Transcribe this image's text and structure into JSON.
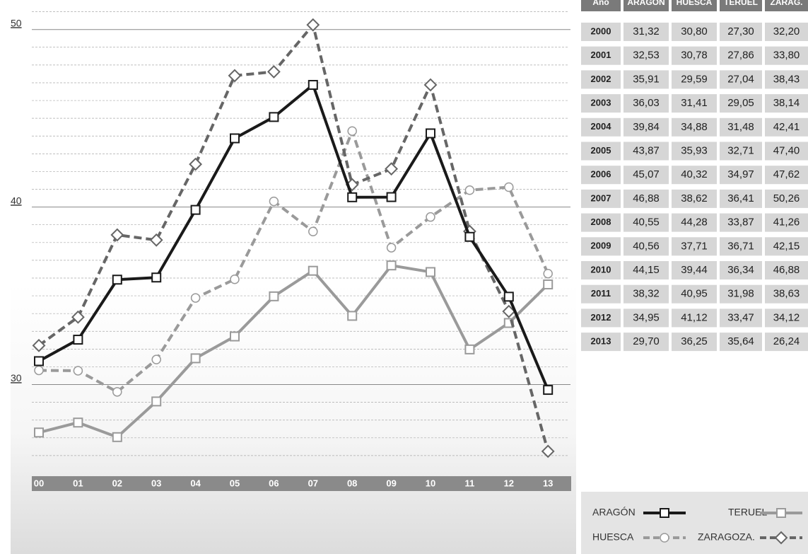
{
  "chart_data": {
    "type": "line",
    "categories": [
      "00",
      "01",
      "02",
      "03",
      "04",
      "05",
      "06",
      "07",
      "08",
      "09",
      "10",
      "11",
      "12",
      "13"
    ],
    "ylim": [
      25,
      51
    ],
    "yticks": [
      30,
      40,
      50
    ],
    "minor_yticks": [
      26,
      27,
      28,
      29,
      31,
      32,
      33,
      34,
      35,
      36,
      37,
      38,
      39,
      41,
      42,
      43,
      44,
      45,
      46,
      47,
      48,
      49,
      51
    ],
    "grid": true,
    "series": [
      {
        "name": "ARAGÓN",
        "color": "#1a1a1a",
        "dash": false,
        "marker": "square",
        "values": [
          31.32,
          32.53,
          35.91,
          36.03,
          39.84,
          43.87,
          45.07,
          46.88,
          40.55,
          40.56,
          44.15,
          38.32,
          34.95,
          29.7
        ],
        "value_labels": [
          "31,32",
          "32,53",
          "35,91",
          "36,03",
          "39,84",
          "43,87",
          "45,07",
          "46,88",
          "40,55",
          "40,56",
          "44,15",
          "38,32",
          "34,95",
          "29,70"
        ]
      },
      {
        "name": "HUESCA",
        "color": "#9a9a9a",
        "dash": true,
        "marker": "circle",
        "values": [
          30.8,
          30.78,
          29.59,
          31.41,
          34.88,
          35.93,
          40.32,
          38.62,
          44.28,
          37.71,
          39.44,
          40.95,
          41.12,
          36.25
        ],
        "value_labels": [
          "30,80",
          "30,78",
          "29,59",
          "31,41",
          "34,88",
          "35,93",
          "40,32",
          "38,62",
          "44,28",
          "37,71",
          "39,44",
          "40,95",
          "41,12",
          "36,25"
        ]
      },
      {
        "name": "TERUEL",
        "color": "#9a9a9a",
        "dash": false,
        "marker": "square",
        "values": [
          27.3,
          27.86,
          27.04,
          29.05,
          31.48,
          32.71,
          34.97,
          36.41,
          33.87,
          36.71,
          36.34,
          31.98,
          33.47,
          35.64
        ],
        "value_labels": [
          "27,30",
          "27,86",
          "27,04",
          "29,05",
          "31,48",
          "32,71",
          "34,97",
          "36,41",
          "33,87",
          "36,71",
          "36,34",
          "31,98",
          "33,47",
          "35,64"
        ]
      },
      {
        "name": "ZARAGOZA.",
        "color": "#666666",
        "dash": true,
        "marker": "diamond",
        "values": [
          32.2,
          33.8,
          38.43,
          38.14,
          42.41,
          47.4,
          47.62,
          50.26,
          41.26,
          42.15,
          46.88,
          38.63,
          34.12,
          26.24
        ],
        "value_labels": [
          "32,20",
          "33,80",
          "38,43",
          "38,14",
          "42,41",
          "47,40",
          "47,62",
          "50,26",
          "41,26",
          "42,15",
          "46,88",
          "38,63",
          "34,12",
          "26,24"
        ]
      }
    ]
  },
  "table": {
    "header": [
      "Año",
      "ARAGÓN",
      "HUESCA",
      "TERUEL",
      "ZARAG."
    ],
    "years": [
      "2000",
      "2001",
      "2002",
      "2003",
      "2004",
      "2005",
      "2006",
      "2007",
      "2008",
      "2009",
      "2010",
      "2011",
      "2012",
      "2013"
    ]
  }
}
